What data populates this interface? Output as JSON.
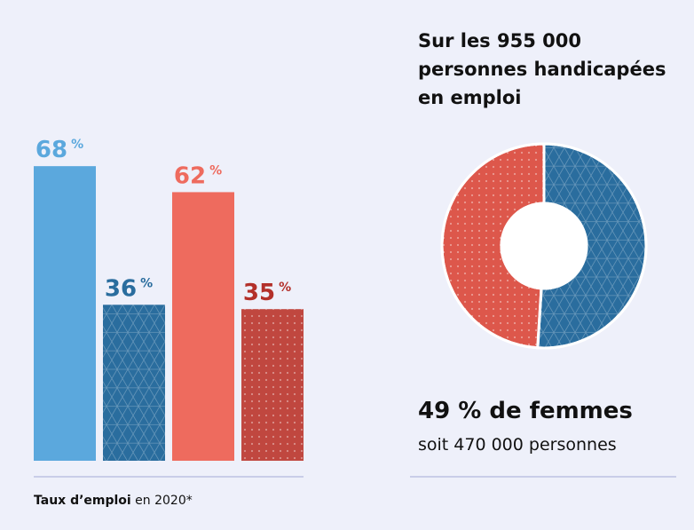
{
  "chart_data": [
    {
      "type": "bar",
      "categories": [
        null,
        null,
        null,
        null
      ],
      "values": [
        68,
        36,
        62,
        35
      ],
      "value_unit": "%",
      "colors": [
        "#5ba8dd",
        "#2a6d9e",
        "#ee6b5e",
        "#c0473f"
      ],
      "label_colors": [
        "#5ba8dd",
        "#2a6d9e",
        "#ee6b5e",
        "#b3302a"
      ],
      "patterns": [
        null,
        "triangles",
        null,
        "dots"
      ],
      "ylim": [
        0,
        100
      ],
      "caption": [
        "Taux d’emploi",
        " en 2020*"
      ]
    },
    {
      "type": "donut",
      "title": [
        "Sur les ",
        "955 000",
        " personnes handicapées en emploi"
      ],
      "categories": [
        null,
        null
      ],
      "values": [
        51,
        49
      ],
      "colors": [
        "#2a6d9e",
        "#dd574b"
      ],
      "patterns": [
        "triangles",
        "dots"
      ],
      "annotation": "49 % de femmes",
      "subannotation": "soit 470 000 personnes"
    }
  ]
}
